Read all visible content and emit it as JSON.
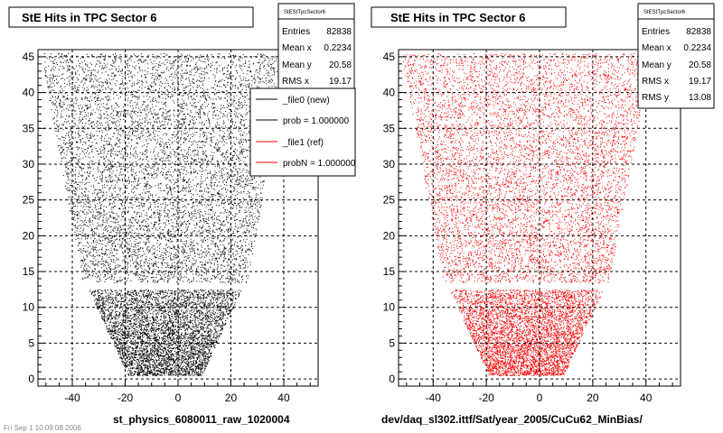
{
  "footer": {
    "timestamp": "Fri Sep 1 10:09:08 2006"
  },
  "chart_data": [
    {
      "type": "scatter",
      "title": "StE Hits in TPC Sector 6",
      "xlabel": "st_physics_6080011_raw_1020004",
      "ylabel": "",
      "xlim": [
        -53,
        53
      ],
      "ylim": [
        -1,
        46
      ],
      "xticks": [
        -40,
        -20,
        0,
        20,
        40
      ],
      "yticks": [
        0,
        5,
        10,
        15,
        20,
        25,
        30,
        35,
        40,
        45
      ],
      "grid": true,
      "color": "#000000",
      "region": {
        "upper": {
          "y": [
            13.5,
            45.5
          ],
          "half_width_bottom": 31,
          "half_width_top": 47
        },
        "lower": {
          "y": [
            0.5,
            12.5
          ],
          "half_width_bottom": 14,
          "half_width_top": 29
        },
        "x_offset": -5
      },
      "stats": {
        "name": "StEStTpcSector6",
        "rows": [
          {
            "label": "Entries",
            "value": "82838"
          },
          {
            "label": "Mean x",
            "value": "0.2234"
          },
          {
            "label": "Mean y",
            "value": "20.58"
          },
          {
            "label": "RMS x",
            "value": "19.17"
          }
        ]
      },
      "legend": {
        "position": "top-right",
        "entries": [
          {
            "label": "_file0 (new)",
            "color": "#000000"
          },
          {
            "label": "prob = 1.000000",
            "color": "#000000"
          },
          {
            "label": "_file1 (ref)",
            "color": "#ff0000"
          },
          {
            "label": "probN = 1.000000",
            "color": "#ff0000"
          }
        ]
      }
    },
    {
      "type": "scatter",
      "title": "StE Hits in TPC Sector 6",
      "xlabel": "dev/daq_sl302.ittf/Sat/year_2005/CuCu62_MinBias/",
      "ylabel": "",
      "xlim": [
        -53,
        53
      ],
      "ylim": [
        -1,
        46
      ],
      "xticks": [
        -40,
        -20,
        0,
        20,
        40
      ],
      "yticks": [
        0,
        5,
        10,
        15,
        20,
        25,
        30,
        35,
        40,
        45
      ],
      "grid": true,
      "color": "#ff0000",
      "region": {
        "upper": {
          "y": [
            13.5,
            45.5
          ],
          "half_width_bottom": 31,
          "half_width_top": 47
        },
        "lower": {
          "y": [
            0.5,
            12.5
          ],
          "half_width_bottom": 14,
          "half_width_top": 29
        },
        "x_offset": -5
      },
      "stats": {
        "name": "StEStTpcSector6",
        "rows": [
          {
            "label": "Entries",
            "value": "82838"
          },
          {
            "label": "Mean x",
            "value": "0.2234"
          },
          {
            "label": "Mean y",
            "value": "20.58"
          },
          {
            "label": "RMS x",
            "value": "19.17"
          },
          {
            "label": "RMS y",
            "value": "13.08"
          }
        ]
      }
    }
  ]
}
